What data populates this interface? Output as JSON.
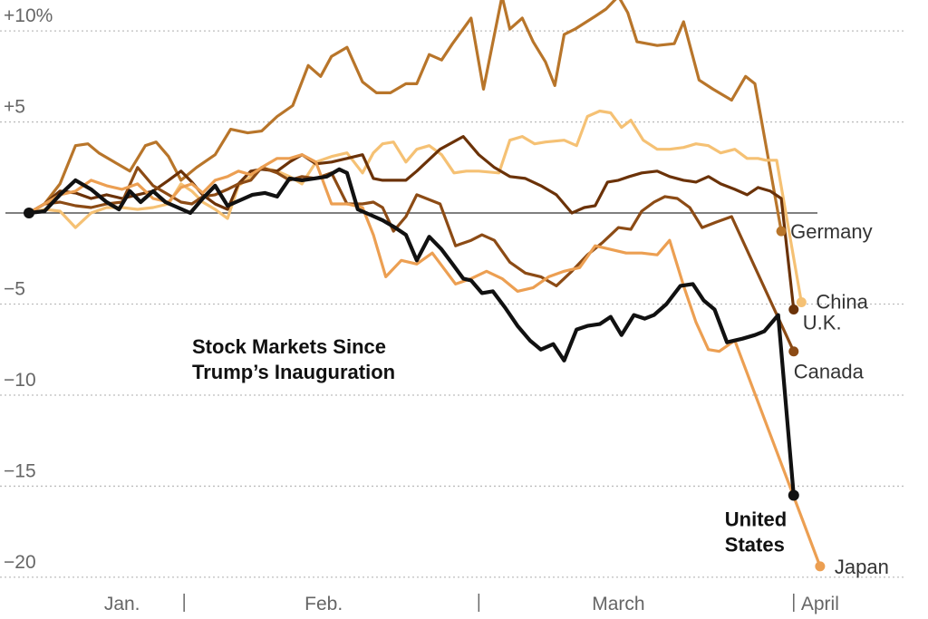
{
  "chart_data": {
    "type": "line",
    "title_lines": [
      "Stock Markets Since",
      "Trump’s Inauguration"
    ],
    "ylim": [
      -21,
      11
    ],
    "yticks": [
      {
        "value": 10,
        "label": "+10%"
      },
      {
        "value": 5,
        "label": "+5"
      },
      {
        "value": -5,
        "label": "−5"
      },
      {
        "value": -10,
        "label": "−10"
      },
      {
        "value": -15,
        "label": "−15"
      },
      {
        "value": -20,
        "label": "−20"
      }
    ],
    "xlim": [
      0,
      52
    ],
    "months": [
      {
        "label": "Jan.",
        "pos": 6
      },
      {
        "label": "Feb.",
        "pos": 19
      },
      {
        "label": "March",
        "pos": 38
      },
      {
        "label": "April",
        "pos": 51
      }
    ],
    "month_separators": [
      10,
      29,
      49.3
    ],
    "series": [
      {
        "name": "Germany",
        "color": "#b8752a",
        "label_lines": [
          "Germany"
        ],
        "values": [
          0,
          0.5,
          1.6,
          3.7,
          3.8,
          3.3,
          2.8,
          2.3,
          3.7,
          3.9,
          3.1,
          1.8,
          2.5,
          3.2,
          4.6,
          4.4,
          4.5,
          5.3,
          5.9,
          8.1,
          7.5,
          8.6,
          9.1,
          7.2,
          6.6,
          6.6,
          7.1,
          7.1,
          8.7,
          8.4,
          9.3,
          10.7,
          6.8,
          11.9,
          10.1,
          10.7,
          9.4,
          8.3,
          7.0,
          9.8,
          10.1,
          10.8,
          11.2,
          11.9,
          11.0,
          9.4,
          9.2,
          9.3,
          10.5,
          7.3,
          6.8,
          6.2,
          7.5,
          7.1,
          -1.0
        ],
        "x": [
          0,
          1,
          2,
          3,
          3.8,
          4.5,
          5.5,
          6.5,
          7.5,
          8.2,
          9,
          9.8,
          10.8,
          12,
          13,
          14.1,
          15,
          16,
          17,
          18,
          18.8,
          19.5,
          20.5,
          21.5,
          22.4,
          23.3,
          24.3,
          25,
          25.8,
          26.6,
          27.3,
          28.5,
          29.3,
          30.5,
          31,
          31.8,
          32.5,
          33.3,
          33.9,
          34.5,
          35.2,
          36.5,
          37.2,
          38,
          38.6,
          39.2,
          40.5,
          41.6,
          42.2,
          43.2,
          44.1,
          45.3,
          46.2,
          46.8,
          48.5
        ]
      },
      {
        "name": "China",
        "color": "#f5c174",
        "label_lines": [
          "China"
        ],
        "values": [
          0,
          0.2,
          0.1,
          -0.8,
          0,
          0.3,
          0.3,
          0.2,
          0.3,
          0.5,
          1.6,
          1.2,
          0.6,
          0.2,
          -0.3,
          1.5,
          2.0,
          2.5,
          2.3,
          2.0,
          1.6,
          2.8,
          3.1,
          3.3,
          2.2,
          3.3,
          3.8,
          3.9,
          2.8,
          3.5,
          3.7,
          3.2,
          2.2,
          2.3,
          2.3,
          2.2,
          4.0,
          4.2,
          3.8,
          3.9,
          4.0,
          3.7,
          5.3,
          5.6,
          5.5,
          4.7,
          5.1,
          4.0,
          3.5,
          3.5,
          3.6,
          3.8,
          3.7,
          3.3,
          3.5,
          3.0,
          3.0,
          2.9,
          2.9,
          -4.9
        ],
        "x": [
          0,
          1,
          2,
          3,
          4,
          5,
          6,
          7,
          8,
          9,
          9.8,
          10.5,
          11.2,
          12,
          12.8,
          13.5,
          14.3,
          15,
          16,
          16.8,
          17.6,
          18.5,
          19.5,
          20.5,
          21.5,
          22.2,
          22.8,
          23.5,
          24.3,
          25,
          25.8,
          26.6,
          27.4,
          28.2,
          29,
          30.3,
          31,
          31.8,
          32.6,
          33.3,
          34.5,
          35.3,
          36,
          36.8,
          37.5,
          38.2,
          38.8,
          39.6,
          40.5,
          41.3,
          42.2,
          43,
          43.8,
          44.6,
          45.5,
          46.3,
          47,
          47.5,
          48.2,
          49.8
        ]
      },
      {
        "name": "U.K.",
        "color": "#6b3208",
        "label_lines": [
          "U.K."
        ],
        "values": [
          0,
          0.5,
          1.2,
          1.1,
          0.8,
          1.0,
          0.8,
          1.0,
          1.2,
          1.8,
          2.3,
          1.7,
          1.0,
          0.5,
          0.2,
          1.6,
          2.3,
          2.4,
          2.3,
          2.8,
          3.2,
          2.7,
          2.8,
          3.0,
          3.2,
          1.9,
          1.8,
          1.8,
          1.8,
          2.3,
          3.5,
          4.2,
          3.2,
          2.5,
          2.0,
          1.9,
          1.5,
          1.0,
          0,
          0.3,
          0.4,
          1.7,
          1.8,
          2.0,
          2.2,
          2.3,
          2.0,
          1.8,
          1.7,
          2.0,
          1.6,
          1.3,
          1.0,
          1.4,
          1.2,
          0.8,
          -5.3
        ],
        "x": [
          0,
          1,
          2,
          3,
          4,
          5,
          6,
          7,
          8,
          9,
          9.8,
          10.5,
          11.2,
          12,
          12.8,
          13.5,
          14.3,
          15,
          16,
          16.8,
          17.6,
          18.5,
          19.5,
          20.5,
          21.5,
          22.2,
          22.8,
          23.5,
          24.3,
          25,
          26.5,
          28,
          29,
          30,
          31,
          32,
          33,
          34,
          35,
          35.8,
          36.5,
          37.3,
          38,
          38.7,
          39.5,
          40.5,
          41.3,
          42.2,
          43,
          43.8,
          44.6,
          45.5,
          46.3,
          47,
          47.8,
          48.5,
          49.3
        ]
      },
      {
        "name": "Canada",
        "color": "#8c4b15",
        "label_lines": [
          "Canada"
        ],
        "values": [
          0,
          0.5,
          0.6,
          0.4,
          0.3,
          0.5,
          0.6,
          2.5,
          1.5,
          1.0,
          0.6,
          0.5,
          0.9,
          1.0,
          1.3,
          1.6,
          1.8,
          2.5,
          2.2,
          1.8,
          2.0,
          1.9,
          2.2,
          0.5,
          0.5,
          0.6,
          0.3,
          -1.0,
          -0.2,
          1.0,
          0.5,
          -1.8,
          -1.5,
          -1.2,
          -1.5,
          -2.7,
          -3.3,
          -3.5,
          -4.0,
          -3.2,
          -2.3,
          -1.6,
          -0.8,
          -0.9,
          0.1,
          0.6,
          0.9,
          0.8,
          0.3,
          -0.8,
          -0.5,
          -0.2,
          -7.6
        ],
        "x": [
          0,
          1,
          2,
          3,
          4,
          5,
          6,
          7,
          8,
          9,
          9.8,
          10.5,
          11.2,
          12,
          12.8,
          13.5,
          14.3,
          15,
          16,
          16.8,
          17.6,
          18.5,
          19.5,
          20.5,
          21.5,
          22.2,
          22.8,
          23.5,
          24.3,
          25,
          26.5,
          27.5,
          28.5,
          29.2,
          30,
          31,
          32,
          33,
          34,
          35,
          36,
          37,
          38,
          38.8,
          39.5,
          40.3,
          41,
          41.8,
          42.6,
          43.4,
          44.3,
          45.3,
          49.3
        ]
      },
      {
        "name": "Japan",
        "color": "#ec9f52",
        "label_lines": [
          "Japan"
        ],
        "values": [
          0,
          0.5,
          1.0,
          1.2,
          1.8,
          1.5,
          1.3,
          1.6,
          0.8,
          0.6,
          1.4,
          1.6,
          1.1,
          1.8,
          2.0,
          2.3,
          2.1,
          2.5,
          3.0,
          3.0,
          3.2,
          2.8,
          0.5,
          0.5,
          0.3,
          -1.2,
          -3.5,
          -2.6,
          -2.8,
          -2.2,
          -3.9,
          -3.6,
          -3.2,
          -3.6,
          -4.3,
          -4.1,
          -3.5,
          -3.2,
          -3.0,
          -1.8,
          -2.0,
          -2.2,
          -2.2,
          -2.3,
          -1.5,
          -4.0,
          -6.0,
          -7.5,
          -7.6,
          -7.0,
          -19.4
        ],
        "x": [
          0,
          1,
          2,
          3,
          4,
          5,
          6,
          7,
          8,
          9,
          9.8,
          10.5,
          11.2,
          12,
          12.8,
          13.5,
          14.3,
          15,
          16,
          16.8,
          17.6,
          18.5,
          19.5,
          20.5,
          21.5,
          22.2,
          23,
          24,
          25,
          26,
          27.5,
          28.5,
          29.5,
          30.5,
          31.5,
          32.5,
          33.5,
          34.5,
          35.5,
          36.5,
          37.5,
          38.5,
          39.5,
          40.5,
          41.3,
          42.2,
          43,
          43.8,
          44.5,
          45.5,
          51
        ]
      },
      {
        "name": "United States",
        "color": "#111111",
        "label_lines": [
          "United",
          "States"
        ],
        "values": [
          0,
          0.1,
          1.0,
          1.8,
          1.3,
          0.6,
          0.2,
          1.2,
          0.6,
          1.2,
          0.6,
          0.3,
          0.0,
          0.8,
          1.5,
          0.4,
          0.7,
          1.0,
          1.1,
          0.9,
          1.9,
          1.8,
          1.9,
          2.0,
          2.4,
          2.2,
          0.2,
          -0.1,
          -0.4,
          -0.8,
          -1.2,
          -2.6,
          -1.3,
          -2.0,
          -2.8,
          -3.6,
          -3.7,
          -4.4,
          -4.3,
          -5.2,
          -6.2,
          -7.0,
          -7.5,
          -7.2,
          -8.1,
          -6.4,
          -6.2,
          -6.1,
          -5.7,
          -6.7,
          -5.6,
          -5.8,
          -5.6,
          -5.0,
          -4.0,
          -3.9,
          -4.8,
          -5.3,
          -7.1,
          -6.9,
          -6.7,
          -6.5,
          -5.6,
          -15.5
        ],
        "x": [
          0,
          1,
          2,
          3,
          4,
          5,
          5.8,
          6.5,
          7.2,
          8,
          8.8,
          9.6,
          10.4,
          11.2,
          12,
          12.8,
          13.6,
          14.4,
          15.2,
          16,
          16.8,
          17.6,
          18.4,
          19.2,
          20,
          20.5,
          21.2,
          22,
          22.8,
          23.6,
          24.3,
          25,
          25.8,
          26.6,
          27.3,
          28,
          28.5,
          29.2,
          29.9,
          30.7,
          31.5,
          32.3,
          33,
          33.8,
          34.5,
          35.3,
          36,
          36.8,
          37.5,
          38.2,
          39,
          39.7,
          40.3,
          41.1,
          42,
          42.8,
          43.5,
          44.2,
          45,
          46,
          46.8,
          47.4,
          48.3,
          49.3
        ]
      }
    ]
  }
}
